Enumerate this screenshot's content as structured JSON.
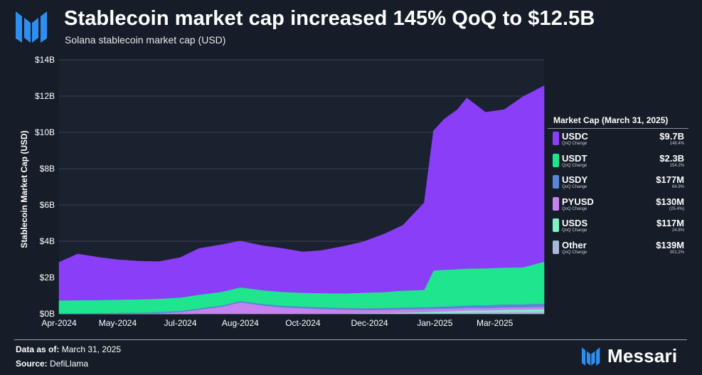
{
  "header": {
    "title": "Stablecoin market cap increased 145% QoQ to $12.5B",
    "subtitle": "Solana stablecoin market cap (USD)"
  },
  "legend": {
    "title": "Market Cap (March 31, 2025)",
    "sub_label": "QoQ Change",
    "items": [
      {
        "name": "USDC",
        "value": "$9.7B",
        "change": "148.4%",
        "color": "#8b3ef7"
      },
      {
        "name": "USDT",
        "value": "$2.3B",
        "change": "154.2%",
        "color": "#1ee58e"
      },
      {
        "name": "USDY",
        "value": "$177M",
        "change": "64.9%",
        "color": "#5a86d8"
      },
      {
        "name": "PYUSD",
        "value": "$130M",
        "change": "(25.4%)",
        "color": "#c483ef"
      },
      {
        "name": "USDS",
        "value": "$117M",
        "change": "24.8%",
        "color": "#7ef3c6"
      },
      {
        "name": "Other",
        "value": "$139M",
        "change": "301.2%",
        "color": "#a9b9dc"
      }
    ]
  },
  "footer": {
    "data_as_of_label": "Data as of:",
    "data_as_of": "March 31, 2025",
    "source_label": "Source:",
    "source": "DefiLlama",
    "brand": "Messari"
  },
  "chart_data": {
    "type": "area",
    "stacked": true,
    "title": "Stablecoin market cap increased 145% QoQ to $12.5B",
    "subtitle": "Solana stablecoin market cap (USD)",
    "ylabel": "Stablecoin Market Cap (USD)",
    "xlabel": "",
    "ylim": [
      0,
      14
    ],
    "yunit": "B USD",
    "yticks": [
      "$0B",
      "$2B",
      "$4B",
      "$6B",
      "$8B",
      "$10B",
      "$12B",
      "$14B"
    ],
    "xticks": [
      "Apr-2024",
      "May-2024",
      "Jul-2024",
      "Aug-2024",
      "Oct-2024",
      "Dec-2024",
      "Jan-2025",
      "Mar-2025"
    ],
    "xticks_dates": [
      "2024-04-01",
      "2024-05-15",
      "2024-07-01",
      "2024-08-15",
      "2024-10-01",
      "2024-11-20",
      "2025-01-08",
      "2025-02-22"
    ],
    "x_range": [
      "2024-04-01",
      "2025-03-31"
    ],
    "grid": true,
    "legend_position": "right",
    "x": [
      "2024-04-01",
      "2024-04-15",
      "2024-05-01",
      "2024-05-15",
      "2024-06-01",
      "2024-06-15",
      "2024-07-01",
      "2024-07-15",
      "2024-08-01",
      "2024-08-15",
      "2024-09-01",
      "2024-09-15",
      "2024-10-01",
      "2024-10-15",
      "2024-11-01",
      "2024-11-15",
      "2024-12-01",
      "2024-12-15",
      "2024-12-31",
      "2025-01-07",
      "2025-01-15",
      "2025-01-25",
      "2025-02-01",
      "2025-02-15",
      "2025-03-01",
      "2025-03-15",
      "2025-03-31"
    ],
    "series": [
      {
        "name": "Other",
        "color": "#a9b9dc",
        "values": [
          0.0,
          0.0,
          0.0,
          0.0,
          0.0,
          0.0,
          0.0,
          0.01,
          0.01,
          0.01,
          0.01,
          0.01,
          0.01,
          0.01,
          0.01,
          0.02,
          0.02,
          0.03,
          0.03,
          0.04,
          0.05,
          0.07,
          0.08,
          0.09,
          0.11,
          0.12,
          0.14
        ]
      },
      {
        "name": "USDS",
        "color": "#7ef3c6",
        "values": [
          0.0,
          0.0,
          0.0,
          0.0,
          0.0,
          0.0,
          0.0,
          0.0,
          0.0,
          0.0,
          0.0,
          0.0,
          0.0,
          0.0,
          0.0,
          0.01,
          0.02,
          0.04,
          0.06,
          0.07,
          0.08,
          0.09,
          0.1,
          0.1,
          0.11,
          0.11,
          0.12
        ]
      },
      {
        "name": "PYUSD",
        "color": "#c483ef",
        "values": [
          0.0,
          0.0,
          0.0,
          0.01,
          0.02,
          0.04,
          0.1,
          0.22,
          0.38,
          0.62,
          0.45,
          0.35,
          0.3,
          0.25,
          0.22,
          0.18,
          0.17,
          0.17,
          0.17,
          0.16,
          0.15,
          0.14,
          0.14,
          0.13,
          0.13,
          0.13,
          0.13
        ]
      },
      {
        "name": "USDY",
        "color": "#5a86d8",
        "values": [
          0.02,
          0.03,
          0.04,
          0.05,
          0.05,
          0.06,
          0.06,
          0.07,
          0.07,
          0.08,
          0.08,
          0.09,
          0.09,
          0.1,
          0.1,
          0.1,
          0.11,
          0.11,
          0.11,
          0.12,
          0.13,
          0.14,
          0.15,
          0.16,
          0.17,
          0.17,
          0.18
        ]
      },
      {
        "name": "USDT",
        "color": "#1ee58e",
        "values": [
          0.72,
          0.72,
          0.72,
          0.72,
          0.73,
          0.73,
          0.74,
          0.75,
          0.75,
          0.75,
          0.76,
          0.76,
          0.76,
          0.78,
          0.8,
          0.85,
          0.88,
          0.93,
          0.95,
          2.0,
          2.02,
          2.02,
          2.03,
          2.03,
          2.03,
          2.03,
          2.3
        ]
      },
      {
        "name": "USDC",
        "color": "#8b3ef7",
        "values": [
          2.1,
          2.55,
          2.35,
          2.2,
          2.1,
          2.05,
          2.2,
          2.55,
          2.6,
          2.55,
          2.45,
          2.4,
          2.25,
          2.35,
          2.6,
          2.8,
          3.2,
          3.6,
          4.8,
          7.7,
          8.3,
          8.8,
          9.4,
          8.6,
          8.7,
          9.4,
          9.7
        ]
      }
    ]
  }
}
